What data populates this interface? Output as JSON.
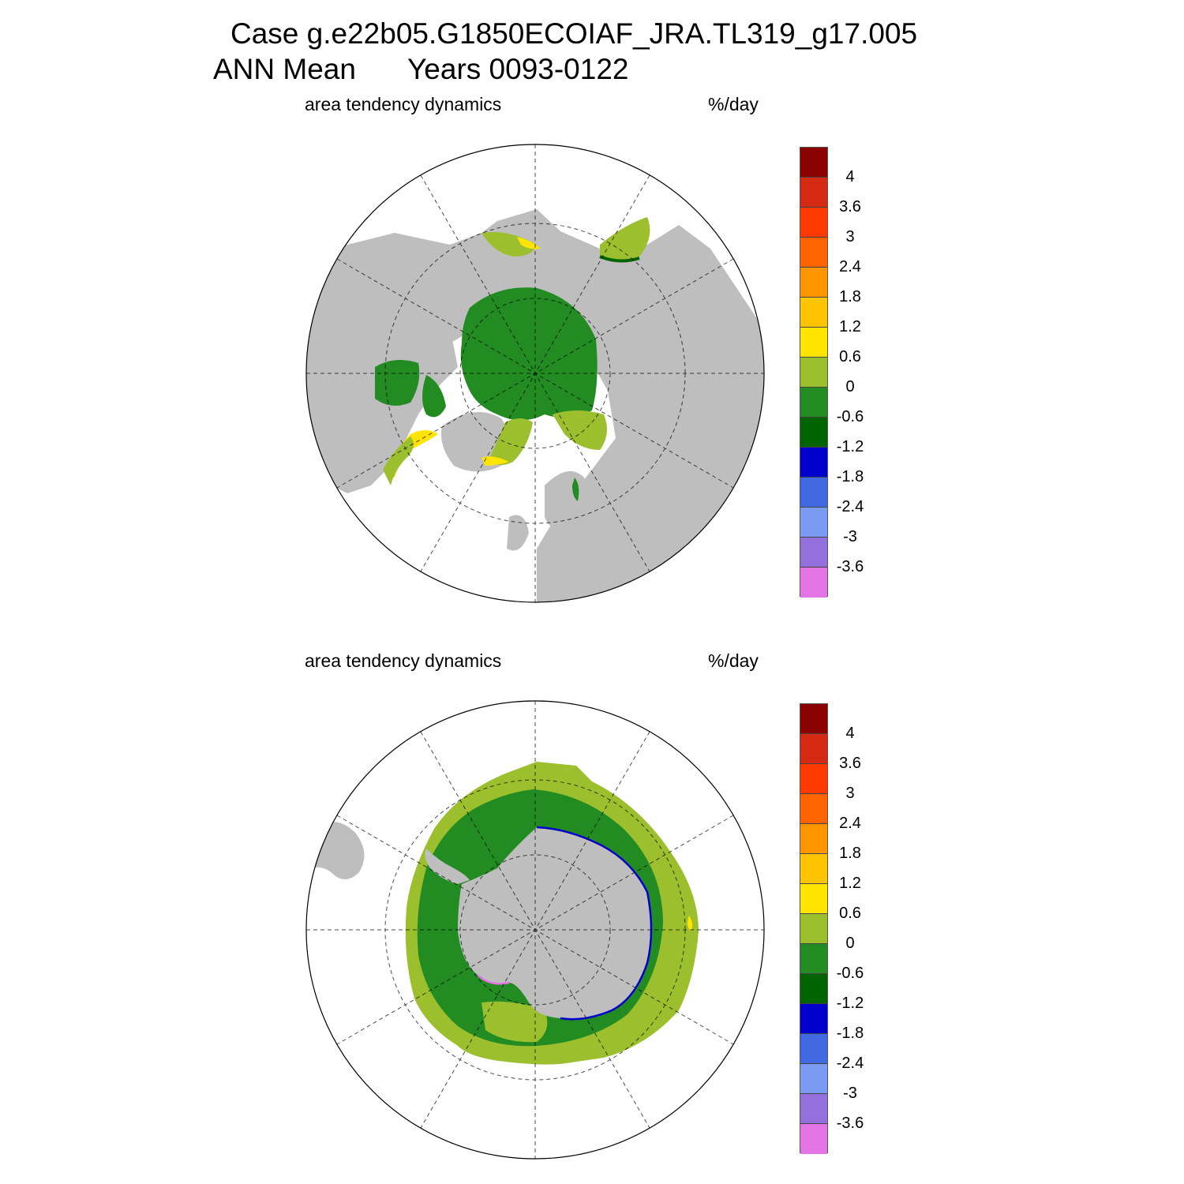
{
  "header": {
    "case_line": "Case g.e22b05.G1850ECOIAF_JRA.TL319_g17.005",
    "mean_label": "ANN Mean",
    "years_label": "Years 0093-0122"
  },
  "panels": [
    {
      "id": "arctic",
      "left_label": "area tendency dynamics",
      "right_label": "%/day",
      "hemisphere": "north"
    },
    {
      "id": "antarctic",
      "left_label": "area tendency dynamics",
      "right_label": "%/day",
      "hemisphere": "south"
    }
  ],
  "colorbar": {
    "colors": [
      "#8b0000",
      "#d42a14",
      "#ff3a00",
      "#ff6400",
      "#ff9600",
      "#ffc400",
      "#ffe400",
      "#9cbf2e",
      "#228b22",
      "#006400",
      "#0000cd",
      "#4169e1",
      "#7b9af2",
      "#9370db",
      "#e374e3"
    ],
    "labels": [
      "4",
      "3.6",
      "3",
      "2.4",
      "1.8",
      "1.2",
      "0.6",
      "0",
      "-0.6",
      "-1.2",
      "-1.8",
      "-2.4",
      "-3",
      "-3.6"
    ]
  },
  "map_colors": {
    "land": "#bebebe",
    "ocean": "#ffffff",
    "ice_light_green": "#9cbf2e",
    "ice_green": "#228b22",
    "ice_dark_green": "#006400",
    "ice_yellow": "#ffe400",
    "ice_blue": "#0000cd",
    "ice_pink": "#e374e3"
  }
}
